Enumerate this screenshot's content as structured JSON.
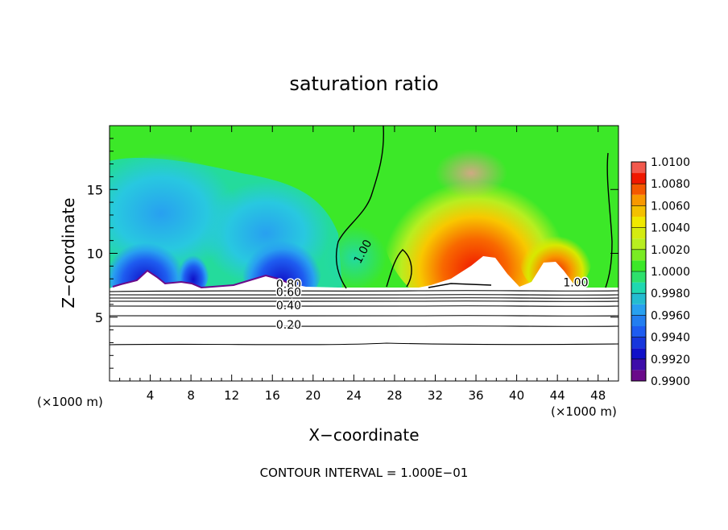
{
  "chart_data": {
    "type": "heatmap",
    "title": "saturation ratio",
    "xlabel": "X−coordinate",
    "ylabel": "Z−coordinate",
    "x_unit_left": "(×1000 m)",
    "x_unit_right": "(×1000 m)",
    "footer": "CONTOUR INTERVAL = 1.000E−01",
    "xlim": [
      0,
      50
    ],
    "ylim": [
      0,
      20
    ],
    "x_ticks": [
      4,
      8,
      12,
      16,
      20,
      24,
      28,
      32,
      36,
      40,
      44,
      48
    ],
    "x_tick_labels": [
      "4",
      "8",
      "12",
      "16",
      "20",
      "24",
      "28",
      "32",
      "36",
      "40",
      "44",
      "48"
    ],
    "y_ticks": [
      5,
      10,
      15
    ],
    "y_tick_labels": [
      "5",
      "10",
      "15"
    ],
    "colorbar": {
      "levels": [
        0.99,
        0.992,
        0.994,
        0.996,
        0.998,
        1.0,
        1.002,
        1.004,
        1.006,
        1.008,
        1.01
      ],
      "labels": [
        "0.9900",
        "0.9920",
        "0.9940",
        "0.9960",
        "0.9980",
        "1.0000",
        "1.0020",
        "1.0040",
        "1.0060",
        "1.0080",
        "1.0100"
      ],
      "colors": [
        "#6a0a8a",
        "#1010c8",
        "#1e5cf0",
        "#28a0f0",
        "#20d8b0",
        "#3ce828",
        "#b8ee20",
        "#f0e800",
        "#f89800",
        "#f01800",
        "#f49a9a"
      ]
    },
    "contour_labels": [
      {
        "text": "1.00",
        "x": 25.2,
        "y": 10.0
      },
      {
        "text": "1.00",
        "x": 45.8,
        "y": 7.4
      },
      {
        "text": "0.80",
        "x": 17.6,
        "y": 7.3
      },
      {
        "text": "0.60",
        "x": 17.6,
        "y": 6.65
      },
      {
        "text": "0.40",
        "x": 17.6,
        "y": 5.6
      },
      {
        "text": "0.20",
        "x": 17.6,
        "y": 4.1
      }
    ],
    "subsaturated_contours": [
      0.8,
      0.7,
      0.6,
      0.5,
      0.4,
      0.3,
      0.2,
      0.1
    ],
    "grid": false,
    "legend": "colorbar right"
  }
}
